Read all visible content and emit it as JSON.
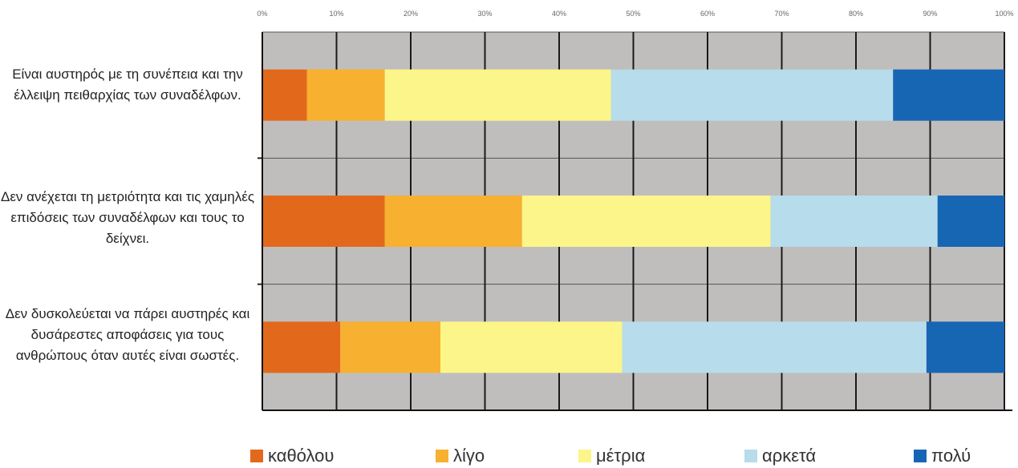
{
  "chart_data": {
    "type": "bar",
    "orientation": "horizontal",
    "stacked": true,
    "xlim": [
      0,
      100
    ],
    "x_ticks": [
      "0%",
      "10%",
      "20%",
      "30%",
      "40%",
      "50%",
      "60%",
      "70%",
      "80%",
      "90%",
      "100%"
    ],
    "grid": true,
    "legend_position": "bottom",
    "categories": [
      "Είναι αυστηρός με τη συνέπεια και την έλλειψη πειθαρχίας των συναδέλφων.",
      "Δεν ανέχεται τη μετριότητα και τις χαμηλές επιδόσεις των συναδέλφων και τους το δείχνει.",
      "Δεν δυσκολεύεται να πάρει αυστηρές και δυσάρεστες αποφάσεις για τους ανθρώπους όταν αυτές είναι σωστές."
    ],
    "series": [
      {
        "name": "καθόλου",
        "color": "#E2691B",
        "values": [
          6,
          16.5,
          10.5
        ]
      },
      {
        "name": "λίγο",
        "color": "#F7B02F",
        "values": [
          10.5,
          18.5,
          13.5
        ]
      },
      {
        "name": "μέτρια",
        "color": "#FCF589",
        "values": [
          30.5,
          33.5,
          24.5
        ]
      },
      {
        "name": "αρκετά",
        "color": "#B7DCEB",
        "values": [
          38,
          22.5,
          41
        ]
      },
      {
        "name": "πολύ",
        "color": "#1766B3",
        "values": [
          15,
          9,
          10.5
        ]
      }
    ]
  }
}
